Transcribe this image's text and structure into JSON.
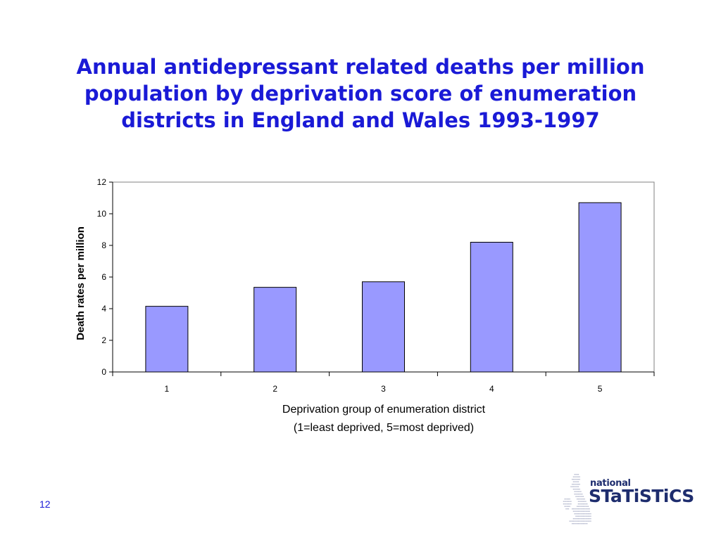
{
  "slide": {
    "title_lines": [
      "Annual antidepressant related deaths per million",
      "population by deprivation score of enumeration",
      "districts in England and Wales 1993-1997"
    ],
    "page_number": "12"
  },
  "logo": {
    "line1": "national",
    "line2": "STaTiSTiCS"
  },
  "colors": {
    "title": "#1a1ad6",
    "bar_fill": "#9999ff",
    "bar_stroke": "#000000",
    "logo_text": "#1e2d6e",
    "logo_map": "#b8bcd0"
  },
  "chart_data": {
    "type": "bar",
    "categories": [
      "1",
      "2",
      "3",
      "4",
      "5"
    ],
    "values": [
      4.15,
      5.35,
      5.7,
      8.2,
      10.7
    ],
    "ylabel": "Death rates per million",
    "xlabel_lines": [
      "Deprivation group of enumeration district",
      "(1=least deprived, 5=most deprived)"
    ],
    "ylim": [
      0,
      12
    ],
    "yticks": [
      0,
      2,
      4,
      6,
      8,
      10,
      12
    ],
    "grid": false,
    "legend": "none"
  }
}
